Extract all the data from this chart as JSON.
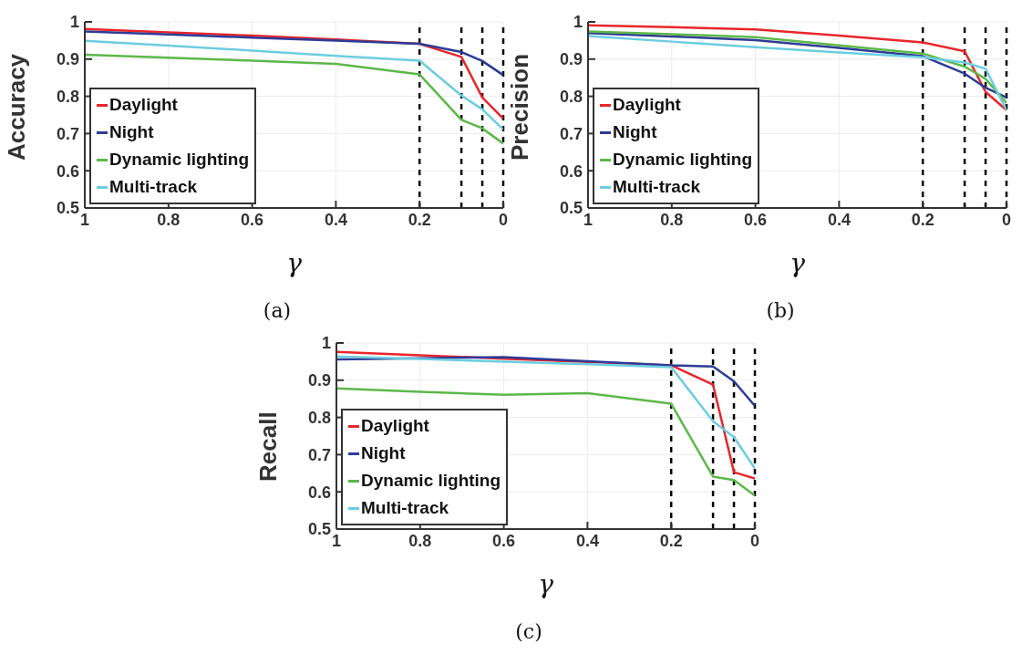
{
  "chart_data": [
    {
      "type": "line",
      "ylabel": "Accuracy",
      "xlabel": "γ",
      "annotations": [
        "(a)"
      ],
      "x": [
        1,
        0.8,
        0.6,
        0.4,
        0.2,
        0.1,
        0.05,
        0
      ],
      "xlim": [
        1,
        0
      ],
      "xticks": [
        1,
        0.8,
        0.6,
        0.4,
        0.2,
        0
      ],
      "ylim": [
        0.5,
        1
      ],
      "yticks": [
        0.5,
        0.6,
        0.7,
        0.8,
        0.9,
        1
      ],
      "grid": true,
      "legend": "bottom left",
      "line_style": "solid",
      "marker": "none",
      "series": [
        {
          "name": "Daylight",
          "color": "#e8262a",
          "values": [
            0.981,
            0.972,
            0.963,
            0.953,
            0.941,
            0.906,
            0.797,
            0.74
          ]
        },
        {
          "name": "Night",
          "color": "#2e3b96",
          "values": [
            0.974,
            0.966,
            0.958,
            0.95,
            0.941,
            0.919,
            0.895,
            0.857
          ]
        },
        {
          "name": "Dynamic lighting",
          "color": "#5cb84a",
          "values": [
            0.912,
            0.904,
            0.896,
            0.887,
            0.859,
            0.737,
            0.714,
            0.673
          ]
        },
        {
          "name": "Multi-track",
          "color": "#6ccde0",
          "values": [
            0.949,
            0.936,
            0.923,
            0.909,
            0.896,
            0.802,
            0.765,
            0.711
          ]
        }
      ],
      "ref_lines": [
        {
          "axis": "x",
          "value": 0.2,
          "color": "#000000",
          "line_style": "dashed"
        },
        {
          "axis": "x",
          "value": 0.1,
          "color": "#000000",
          "line_style": "dashed"
        },
        {
          "axis": "x",
          "value": 0.05,
          "color": "#000000",
          "line_style": "dashed"
        },
        {
          "axis": "x",
          "value": 0,
          "color": "#000000",
          "line_style": "dashed"
        }
      ]
    },
    {
      "type": "line",
      "ylabel": "Precision",
      "xlabel": "γ",
      "annotations": [
        "(b)"
      ],
      "x": [
        1,
        0.8,
        0.6,
        0.4,
        0.2,
        0.1,
        0.05,
        0
      ],
      "xlim": [
        1,
        0
      ],
      "xticks": [
        1,
        0.8,
        0.6,
        0.4,
        0.2,
        0
      ],
      "ylim": [
        0.5,
        1
      ],
      "yticks": [
        0.5,
        0.6,
        0.7,
        0.8,
        0.9,
        1
      ],
      "grid": true,
      "legend": "bottom left",
      "line_style": "solid",
      "marker": "none",
      "series": [
        {
          "name": "Daylight",
          "color": "#e8262a",
          "values": [
            0.991,
            0.986,
            0.98,
            0.963,
            0.945,
            0.921,
            0.812,
            0.763
          ]
        },
        {
          "name": "Night",
          "color": "#2e3b96",
          "values": [
            0.97,
            0.961,
            0.951,
            0.93,
            0.908,
            0.861,
            0.823,
            0.797
          ]
        },
        {
          "name": "Dynamic lighting",
          "color": "#5cb84a",
          "values": [
            0.974,
            0.967,
            0.959,
            0.937,
            0.915,
            0.88,
            0.847,
            0.782
          ]
        },
        {
          "name": "Multi-track",
          "color": "#6ccde0",
          "values": [
            0.962,
            0.947,
            0.932,
            0.918,
            0.905,
            0.891,
            0.874,
            0.763
          ]
        }
      ],
      "ref_lines": [
        {
          "axis": "x",
          "value": 0.2,
          "color": "#000000",
          "line_style": "dashed"
        },
        {
          "axis": "x",
          "value": 0.1,
          "color": "#000000",
          "line_style": "dashed"
        },
        {
          "axis": "x",
          "value": 0.05,
          "color": "#000000",
          "line_style": "dashed"
        },
        {
          "axis": "x",
          "value": 0,
          "color": "#000000",
          "line_style": "dashed"
        }
      ]
    },
    {
      "type": "line",
      "ylabel": "Recall",
      "xlabel": "γ",
      "annotations": [
        "(c)"
      ],
      "x": [
        1,
        0.8,
        0.6,
        0.4,
        0.2,
        0.1,
        0.05,
        0
      ],
      "xlim": [
        1,
        0
      ],
      "xticks": [
        1,
        0.8,
        0.6,
        0.4,
        0.2,
        0
      ],
      "ylim": [
        0.5,
        1
      ],
      "yticks": [
        0.5,
        0.6,
        0.7,
        0.8,
        0.9,
        1
      ],
      "grid": true,
      "legend": "bottom left",
      "line_style": "solid",
      "marker": "none",
      "series": [
        {
          "name": "Daylight",
          "color": "#e8262a",
          "values": [
            0.976,
            0.967,
            0.958,
            0.949,
            0.94,
            0.888,
            0.653,
            0.636
          ]
        },
        {
          "name": "Night",
          "color": "#2e3b96",
          "values": [
            0.956,
            0.959,
            0.962,
            0.951,
            0.94,
            0.937,
            0.897,
            0.831
          ]
        },
        {
          "name": "Dynamic lighting",
          "color": "#5cb84a",
          "values": [
            0.878,
            0.869,
            0.861,
            0.865,
            0.837,
            0.641,
            0.632,
            0.59
          ]
        },
        {
          "name": "Multi-track",
          "color": "#6ccde0",
          "values": [
            0.964,
            0.957,
            0.95,
            0.943,
            0.935,
            0.79,
            0.747,
            0.663
          ]
        }
      ],
      "ref_lines": [
        {
          "axis": "x",
          "value": 0.2,
          "color": "#000000",
          "line_style": "dashed"
        },
        {
          "axis": "x",
          "value": 0.1,
          "color": "#000000",
          "line_style": "dashed"
        },
        {
          "axis": "x",
          "value": 0.05,
          "color": "#000000",
          "line_style": "dashed"
        },
        {
          "axis": "x",
          "value": 0,
          "color": "#000000",
          "line_style": "dashed"
        }
      ]
    }
  ]
}
